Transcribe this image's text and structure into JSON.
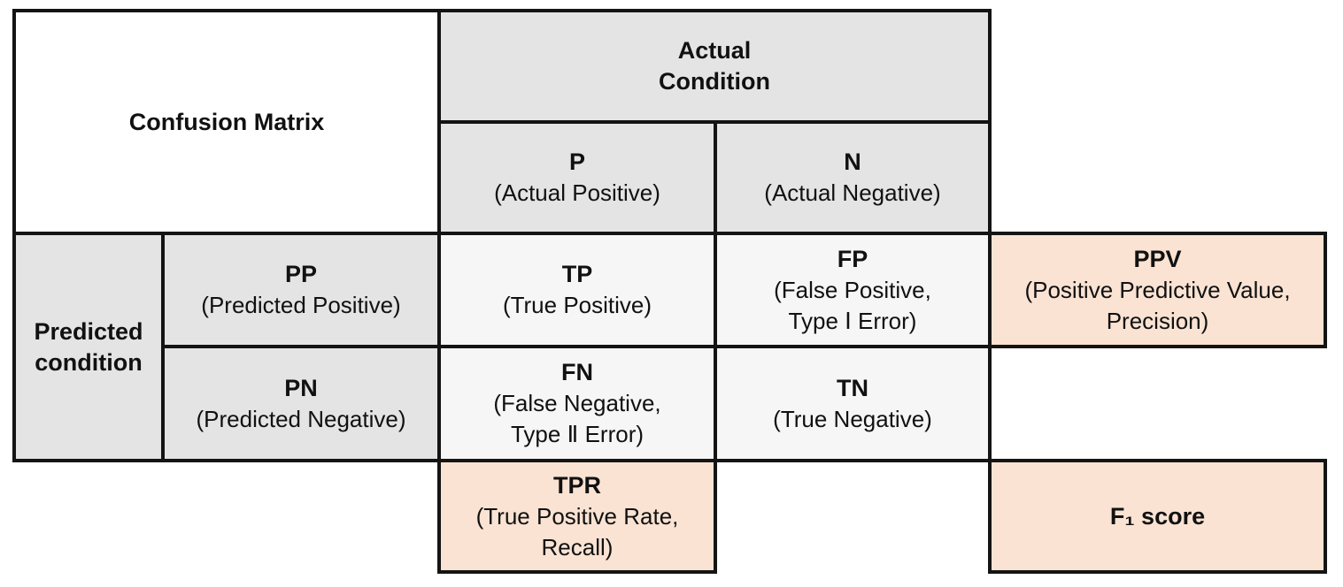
{
  "diagram_title": "Confusion Matrix",
  "colors": {
    "header_gray": "#e4e4e4",
    "matrix_light": "#f6f6f6",
    "metric_peach": "#fae3d3",
    "border": "#141414",
    "text": "#111111"
  },
  "headers": {
    "corner": "Confusion Matrix",
    "actual": "Actual\nCondition",
    "predicted": "Predicted\ncondition"
  },
  "cells": {
    "p": {
      "abbr": "P",
      "desc": "(Actual Positive)"
    },
    "n": {
      "abbr": "N",
      "desc": "(Actual Negative)"
    },
    "pp": {
      "abbr": "PP",
      "desc": "(Predicted Positive)"
    },
    "pn": {
      "abbr": "PN",
      "desc": "(Predicted Negative)"
    },
    "tp": {
      "abbr": "TP",
      "desc": "(True Positive)"
    },
    "fp": {
      "abbr": "FP",
      "desc": "(False Positive,\nType Ⅰ Error)"
    },
    "fn": {
      "abbr": "FN",
      "desc": "(False Negative,\nType Ⅱ Error)"
    },
    "tn": {
      "abbr": "TN",
      "desc": "(True Negative)"
    },
    "ppv": {
      "abbr": "PPV",
      "desc": "(Positive Predictive Value,\nPrecision)"
    },
    "tpr": {
      "abbr": "TPR",
      "desc": "(True Positive Rate,\nRecall)"
    },
    "f1": {
      "abbr": "F₁ score"
    }
  }
}
